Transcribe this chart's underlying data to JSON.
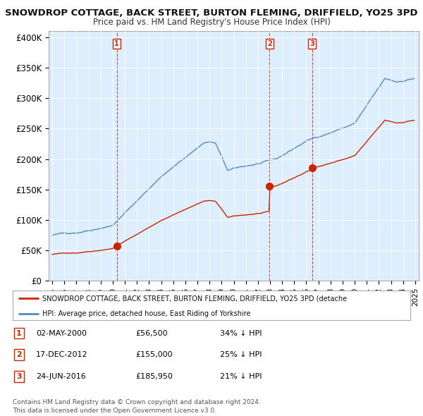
{
  "title": "SNOWDROP COTTAGE, BACK STREET, BURTON FLEMING, DRIFFIELD, YO25 3PD",
  "subtitle": "Price paid vs. HM Land Registry's House Price Index (HPI)",
  "background_color": "#ffffff",
  "plot_bg_color": "#ddeeff",
  "grid_color": "#ffffff",
  "red_line_color": "#cc2200",
  "blue_line_color": "#5588bb",
  "ylabel_ticks": [
    "£0",
    "£50K",
    "£100K",
    "£150K",
    "£200K",
    "£250K",
    "£300K",
    "£350K",
    "£400K"
  ],
  "ytick_values": [
    0,
    50000,
    100000,
    150000,
    200000,
    250000,
    300000,
    350000,
    400000
  ],
  "ylim": [
    0,
    410000
  ],
  "xlim_start": 1994.7,
  "xlim_end": 2025.3,
  "xtick_years": [
    1995,
    1996,
    1997,
    1998,
    1999,
    2000,
    2001,
    2002,
    2003,
    2004,
    2005,
    2006,
    2007,
    2008,
    2009,
    2010,
    2011,
    2012,
    2013,
    2014,
    2015,
    2016,
    2017,
    2018,
    2019,
    2020,
    2021,
    2022,
    2023,
    2024,
    2025
  ],
  "transactions": [
    {
      "num": 1,
      "date_decimal": 2000.34,
      "price": 56500,
      "label": "1"
    },
    {
      "num": 2,
      "date_decimal": 2012.96,
      "price": 155000,
      "label": "2"
    },
    {
      "num": 3,
      "date_decimal": 2016.48,
      "price": 185950,
      "label": "3"
    }
  ],
  "transaction_table": [
    {
      "num": "1",
      "date": "02-MAY-2000",
      "price": "£56,500",
      "pct": "34% ↓ HPI"
    },
    {
      "num": "2",
      "date": "17-DEC-2012",
      "price": "£155,000",
      "pct": "25% ↓ HPI"
    },
    {
      "num": "3",
      "date": "24-JUN-2016",
      "price": "£185,950",
      "pct": "21% ↓ HPI"
    }
  ],
  "legend_red_label": "SNOWDROP COTTAGE, BACK STREET, BURTON FLEMING, DRIFFIELD, YO25 3PD (detache",
  "legend_blue_label": "HPI: Average price, detached house, East Riding of Yorkshire",
  "footer_line1": "Contains HM Land Registry data © Crown copyright and database right 2024.",
  "footer_line2": "This data is licensed under the Open Government Licence v3.0."
}
